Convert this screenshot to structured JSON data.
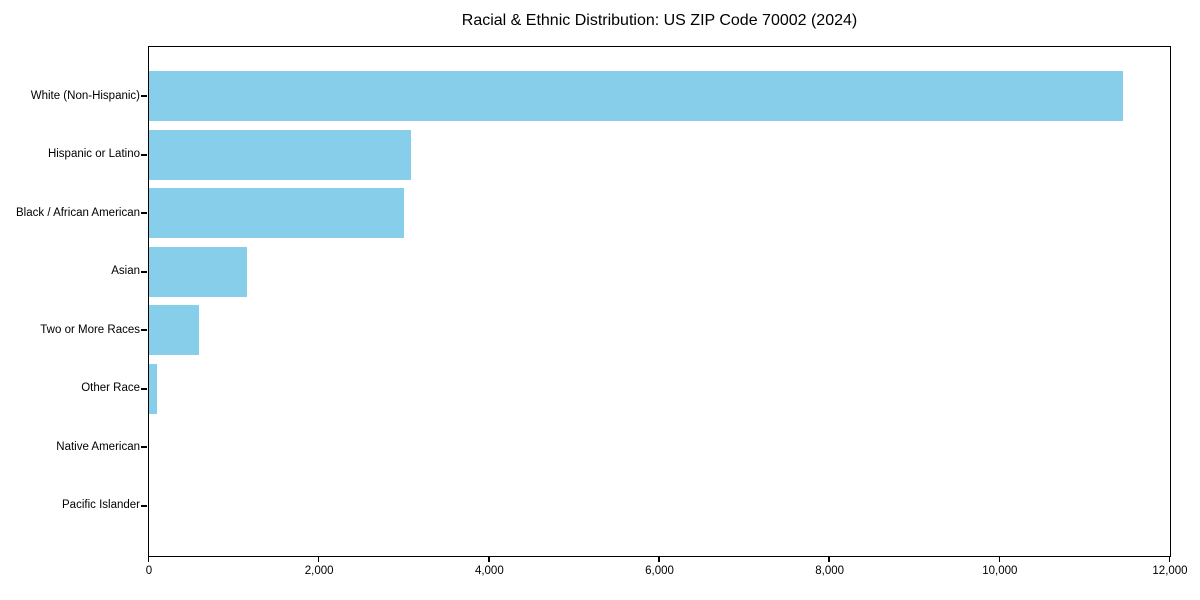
{
  "chart_data": {
    "type": "bar",
    "orientation": "horizontal",
    "title": "Racial & Ethnic Distribution: US ZIP Code 70002 (2024)",
    "categories": [
      "White (Non-Hispanic)",
      "Hispanic or Latino",
      "Black / African American",
      "Asian",
      "Two or More Races",
      "Other Race",
      "Native American",
      "Pacific Islander"
    ],
    "values": [
      11450,
      3090,
      3000,
      1160,
      590,
      105,
      0,
      0
    ],
    "xlabel": "",
    "ylabel": "",
    "xlim": [
      0,
      12000
    ],
    "xticks": [
      0,
      2000,
      4000,
      6000,
      8000,
      10000,
      12000
    ],
    "xtick_labels": [
      "0",
      "2,000",
      "4,000",
      "6,000",
      "8,000",
      "10,000",
      "12,000"
    ],
    "bar_color": "#87CEEB",
    "axis_color": "#000000",
    "grid": false,
    "legend": null,
    "background_color": "#ffffff"
  }
}
